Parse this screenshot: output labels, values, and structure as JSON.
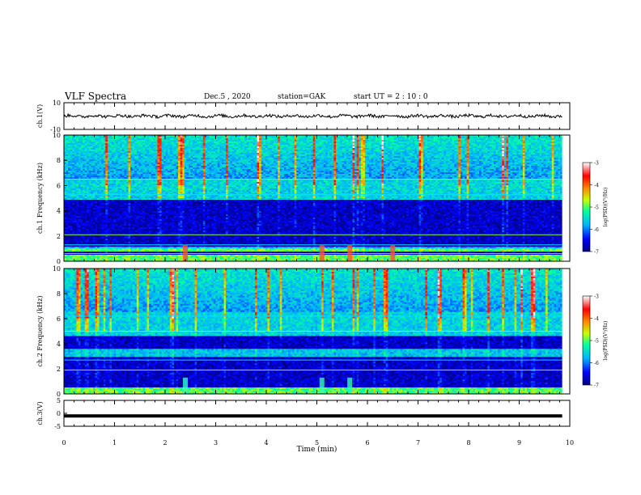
{
  "header": {
    "title": "VLF Spectra",
    "date": "Dec.5 , 2020",
    "station": "station=GAK",
    "start": "start UT = 2 : 10 : 0"
  },
  "chart_data": [
    {
      "type": "line",
      "panel": "ch1-waveform",
      "ylabel": "ch.1(V)",
      "ylim": [
        -10,
        10
      ],
      "yticks": [
        "10",
        "-10"
      ],
      "xlim": [
        0,
        10
      ],
      "trace_extent_min": 9.85,
      "trace_level_v": 0,
      "color": "#000000"
    },
    {
      "type": "heatmap",
      "panel": "ch1-spectrogram",
      "ylabel": "ch.1 Frequency (kHz)",
      "ylim": [
        0,
        10
      ],
      "yticks": [
        "0",
        "2",
        "4",
        "6",
        "8",
        "10"
      ],
      "xlim": [
        0,
        10
      ],
      "data_extent_min": 9.85,
      "dark_bands_khz": [
        [
          1.2,
          4.9
        ],
        [
          0.45,
          0.8
        ]
      ],
      "bright_band_khz": [
        0.0,
        1.0
      ],
      "horizontal_lines_khz": [
        0.6,
        1.3,
        2.1,
        5.3,
        6.5
      ],
      "bursts_min": [
        2.4,
        5.1,
        5.65,
        6.5
      ]
    },
    {
      "type": "heatmap",
      "panel": "ch2-spectrogram",
      "ylabel": "ch.2 Frequency (kHz)",
      "ylim": [
        0,
        10
      ],
      "yticks": [
        "0",
        "2",
        "4",
        "6",
        "8",
        "10"
      ],
      "xlim": [
        0,
        10
      ],
      "data_extent_min": 9.85,
      "dark_bands_khz": [
        [
          0.5,
          3.0
        ],
        [
          3.6,
          4.6
        ]
      ],
      "bright_band_khz": [
        0.0,
        0.5
      ],
      "horizontal_lines_khz": [
        1.9,
        2.7,
        5.0,
        6.2
      ],
      "bursts_min": [
        2.4,
        5.1,
        5.65
      ]
    },
    {
      "type": "line",
      "panel": "ch3-waveform",
      "ylabel": "ch.3(V)",
      "ylim": [
        -5,
        5
      ],
      "yticks": [
        "5",
        "0",
        "-5"
      ],
      "xlim": [
        0,
        10
      ],
      "trace_extent_min": 9.85,
      "trace_level_v": -1,
      "color": "#000000"
    },
    {
      "type": "axis",
      "xlabel": "Time (min)",
      "xticks": [
        "0",
        "1",
        "2",
        "3",
        "4",
        "5",
        "6",
        "7",
        "8",
        "9",
        "10"
      ],
      "xlim": [
        0,
        10
      ]
    },
    {
      "type": "colorbar",
      "label": "log(PSD)(V²/Hz)",
      "range": [
        -7,
        -3
      ],
      "ticks": [
        "-3",
        "-4",
        "-5",
        "-6",
        "-7"
      ],
      "colormap": [
        "#000080",
        "#0000ff",
        "#00b4ff",
        "#00ffa0",
        "#c8ff00",
        "#ff8000",
        "#ff0000",
        "#ffffff"
      ]
    }
  ]
}
